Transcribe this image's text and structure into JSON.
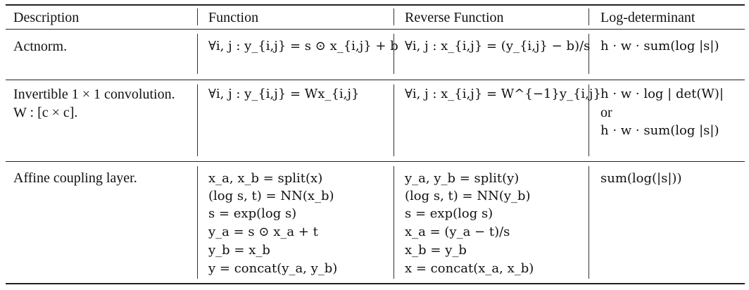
{
  "table": {
    "headers": [
      "Description",
      "Function",
      "Reverse Function",
      "Log-determinant"
    ],
    "rows": [
      {
        "description": [
          "Actnorm."
        ],
        "function": [
          "∀i, j : y_{i,j} = s ⊙ x_{i,j} + b"
        ],
        "reverse": [
          "∀i, j : x_{i,j} = (y_{i,j} − b)/s"
        ],
        "logdet": [
          "h · w · sum(log |s|)"
        ]
      },
      {
        "description": [
          "Invertible 1 × 1 convolution.",
          "W : [c × c]."
        ],
        "function": [
          "∀i, j : y_{i,j} = Wx_{i,j}"
        ],
        "reverse": [
          "∀i, j : x_{i,j} = W^{−1}y_{i,j}"
        ],
        "logdet": [
          "h · w · log | det(W)|",
          "or",
          "h · w · sum(log |s|)"
        ]
      },
      {
        "description": [
          "Affine coupling layer."
        ],
        "function": [
          "x_a, x_b = split(x)",
          "(log s, t) = NN(x_b)",
          "s = exp(log s)",
          "y_a = s ⊙ x_a + t",
          "y_b = x_b",
          "y = concat(y_a, y_b)"
        ],
        "reverse": [
          "y_a, y_b = split(y)",
          "(log s, t) = NN(y_b)",
          "s = exp(log s)",
          "x_a = (y_a − t)/s",
          "x_b = y_b",
          "x = concat(x_a, x_b)"
        ],
        "logdet": [
          "sum(log(|s|))"
        ]
      }
    ]
  }
}
